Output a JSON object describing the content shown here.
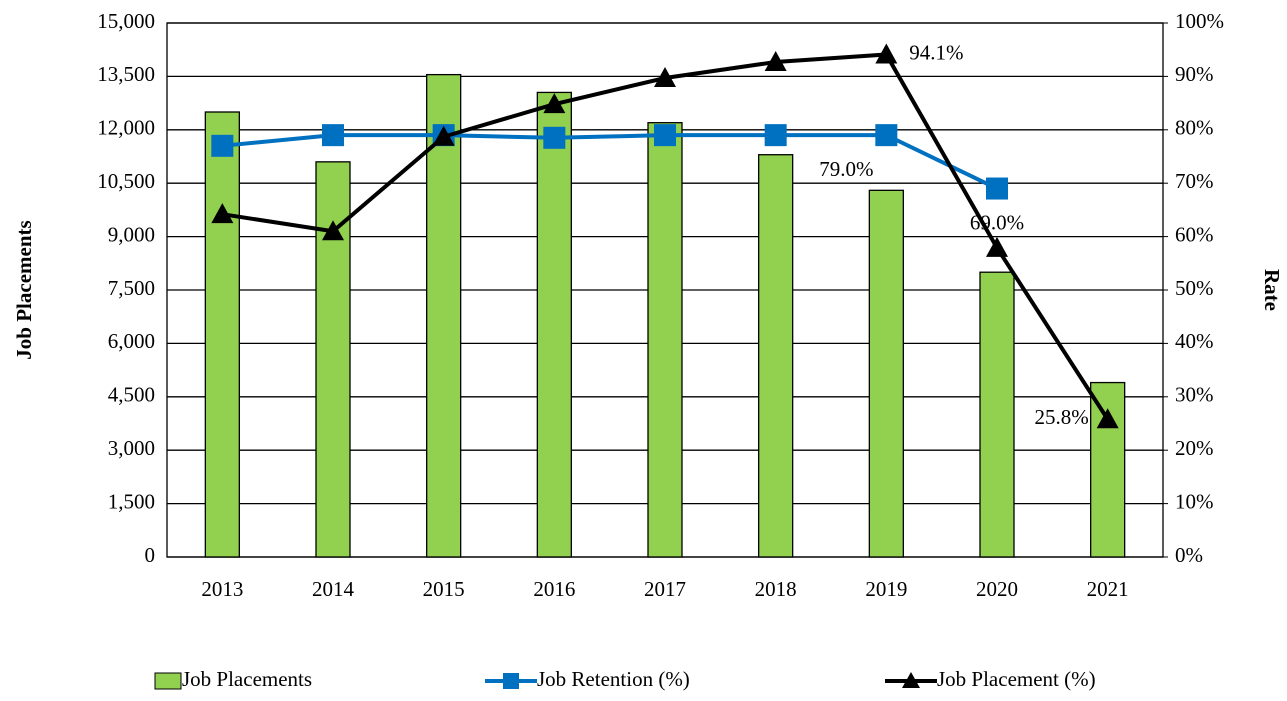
{
  "chart_data": {
    "type": "bar",
    "categories": [
      "2013",
      "2014",
      "2015",
      "2016",
      "2017",
      "2018",
      "2019",
      "2020",
      "2021"
    ],
    "ylabel": "Job Placements",
    "y2label": "Rate",
    "ylim": [
      0,
      15000
    ],
    "yticks": [
      0,
      {
        "value": 1500,
        "label": "1,500"
      },
      {
        "value": 3000,
        "label": "3,000"
      },
      {
        "value": 4500,
        "label": "4,500"
      },
      {
        "value": 6000,
        "label": "6,000"
      },
      {
        "value": 7500,
        "label": "7,500"
      },
      {
        "value": 9000,
        "label": "9,000"
      },
      {
        "value": 10500,
        "label": "10,500"
      },
      {
        "value": 12000,
        "label": "12,000"
      },
      {
        "value": 13500,
        "label": "13,500"
      },
      {
        "value": 15000,
        "label": "15,000"
      }
    ],
    "y2lim": [
      0,
      100
    ],
    "y2ticks": [
      {
        "value": 0,
        "label": "0%"
      },
      {
        "value": 10,
        "label": "10%"
      },
      {
        "value": 20,
        "label": "20%"
      },
      {
        "value": 30,
        "label": "30%"
      },
      {
        "value": 40,
        "label": "40%"
      },
      {
        "value": 50,
        "label": "50%"
      },
      {
        "value": 60,
        "label": "60%"
      },
      {
        "value": 70,
        "label": "70%"
      },
      {
        "value": 80,
        "label": "80%"
      },
      {
        "value": 90,
        "label": "90%"
      },
      {
        "value": 100,
        "label": "100%"
      }
    ],
    "grid": true,
    "legend": "bottom",
    "series": [
      {
        "name": "Job Placements",
        "type": "bar",
        "color": "#92d050",
        "values": [
          12500,
          11100,
          13550,
          13050,
          12200,
          11300,
          10300,
          8000,
          4900
        ]
      },
      {
        "name": "Job Retention (%)",
        "type": "line",
        "axis": "y2",
        "marker": "square",
        "color": "#0070c0",
        "values": [
          77,
          79,
          79,
          78.5,
          79,
          79,
          79,
          69,
          null
        ],
        "value_labels": [
          null,
          null,
          null,
          null,
          null,
          null,
          "79.0%",
          "69.0%",
          null
        ]
      },
      {
        "name": "Job Placement (%)",
        "type": "line",
        "axis": "y2",
        "marker": "triangle",
        "color": "#000000",
        "values": [
          64.2,
          61,
          78.7,
          84.8,
          89.7,
          92.7,
          94.1,
          57.9,
          25.8
        ],
        "value_labels": [
          null,
          null,
          null,
          null,
          null,
          null,
          "94.1%",
          null,
          "25.8%"
        ]
      }
    ]
  }
}
